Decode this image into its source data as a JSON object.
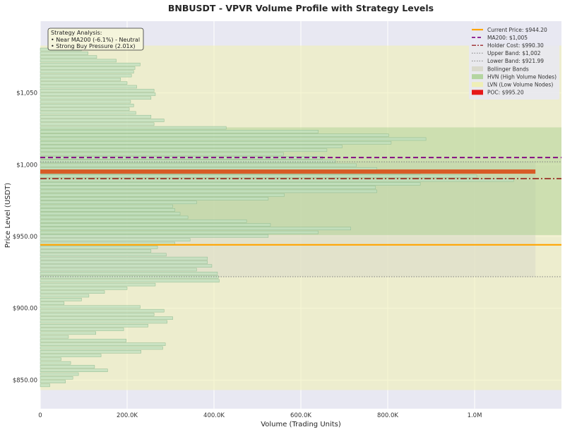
{
  "chart_data": {
    "type": "bar",
    "orientation": "horizontal",
    "title": "BNBUSDT - VPVR Volume Profile with Strategy Levels",
    "xlabel": "Volume (Trading Units)",
    "ylabel": "Price Level (USDT)",
    "xlim": [
      0,
      1200000
    ],
    "ylim": [
      830,
      1100
    ],
    "x_ticks": [
      {
        "value": 0,
        "label": "0"
      },
      {
        "value": 200000,
        "label": "200.0K"
      },
      {
        "value": 400000,
        "label": "400.0K"
      },
      {
        "value": 600000,
        "label": "600.0K"
      },
      {
        "value": 800000,
        "label": "800.0K"
      },
      {
        "value": 1000000,
        "label": "1.0M"
      }
    ],
    "y_ticks": [
      {
        "value": 850,
        "label": "$850.00"
      },
      {
        "value": 900,
        "label": "$900.00"
      },
      {
        "value": 950,
        "label": "$950.00"
      },
      {
        "value": 1000,
        "label": "$1,000"
      },
      {
        "value": 1050,
        "label": "$1,050"
      }
    ],
    "grid": true,
    "legend_position": "top-right",
    "colors": {
      "plot_bg": "#e8e8f2",
      "bar_fill": "#bfdfbf",
      "bar_edge": "#8fba8f",
      "current_price": "#ffa500",
      "ma200": "#800080",
      "holder_cost": "#8b0000",
      "bands": "#808080",
      "bollinger_fill": "#d8d8c8",
      "hvn_fill": "#a6cf8c",
      "lvn_fill": "#f0f0b0",
      "poc": "#e61919"
    },
    "volume_profile": {
      "bin_size": 2.6,
      "bins": [
        {
          "price": 846.3,
          "volume": 22000
        },
        {
          "price": 848.9,
          "volume": 58000
        },
        {
          "price": 851.5,
          "volume": 75000
        },
        {
          "price": 854.1,
          "volume": 88000
        },
        {
          "price": 856.7,
          "volume": 155000
        },
        {
          "price": 859.3,
          "volume": 125000
        },
        {
          "price": 861.9,
          "volume": 70000
        },
        {
          "price": 864.5,
          "volume": 48000
        },
        {
          "price": 867.1,
          "volume": 140000
        },
        {
          "price": 869.7,
          "volume": 232000
        },
        {
          "price": 872.3,
          "volume": 282000
        },
        {
          "price": 874.9,
          "volume": 288000
        },
        {
          "price": 877.5,
          "volume": 198000
        },
        {
          "price": 880.1,
          "volume": 65000
        },
        {
          "price": 882.7,
          "volume": 128000
        },
        {
          "price": 885.3,
          "volume": 192000
        },
        {
          "price": 887.9,
          "volume": 248000
        },
        {
          "price": 890.5,
          "volume": 292000
        },
        {
          "price": 893.1,
          "volume": 305000
        },
        {
          "price": 895.7,
          "volume": 262000
        },
        {
          "price": 898.3,
          "volume": 285000
        },
        {
          "price": 900.9,
          "volume": 230000
        },
        {
          "price": 903.5,
          "volume": 55000
        },
        {
          "price": 906.1,
          "volume": 95000
        },
        {
          "price": 908.7,
          "volume": 112000
        },
        {
          "price": 911.3,
          "volume": 148000
        },
        {
          "price": 913.9,
          "volume": 200000
        },
        {
          "price": 916.5,
          "volume": 265000
        },
        {
          "price": 919.1,
          "volume": 412000
        },
        {
          "price": 921.7,
          "volume": 410000
        },
        {
          "price": 924.3,
          "volume": 408000
        },
        {
          "price": 926.9,
          "volume": 360000
        },
        {
          "price": 929.5,
          "volume": 395000
        },
        {
          "price": 932.1,
          "volume": 385000
        },
        {
          "price": 934.7,
          "volume": 385000
        },
        {
          "price": 937.3,
          "volume": 290000
        },
        {
          "price": 939.9,
          "volume": 255000
        },
        {
          "price": 942.5,
          "volume": 270000
        },
        {
          "price": 945.1,
          "volume": 310000
        },
        {
          "price": 947.7,
          "volume": 345000
        },
        {
          "price": 950.3,
          "volume": 525000
        },
        {
          "price": 952.9,
          "volume": 640000
        },
        {
          "price": 955.5,
          "volume": 715000
        },
        {
          "price": 958.1,
          "volume": 530000
        },
        {
          "price": 960.7,
          "volume": 475000
        },
        {
          "price": 963.3,
          "volume": 340000
        },
        {
          "price": 965.9,
          "volume": 322000
        },
        {
          "price": 968.5,
          "volume": 310000
        },
        {
          "price": 971.1,
          "volume": 305000
        },
        {
          "price": 973.7,
          "volume": 360000
        },
        {
          "price": 976.3,
          "volume": 525000
        },
        {
          "price": 978.9,
          "volume": 562000
        },
        {
          "price": 981.5,
          "volume": 775000
        },
        {
          "price": 984.1,
          "volume": 772000
        },
        {
          "price": 986.7,
          "volume": 875000
        },
        {
          "price": 989.3,
          "volume": 1090000
        },
        {
          "price": 991.9,
          "volume": 1005000
        },
        {
          "price": 994.5,
          "volume": 875000
        },
        {
          "price": 997.1,
          "volume": 775000
        },
        {
          "price": 999.7,
          "volume": 728000
        },
        {
          "price": 1002.3,
          "volume": 680000
        },
        {
          "price": 1004.9,
          "volume": 650000
        },
        {
          "price": 1007.5,
          "volume": 560000
        },
        {
          "price": 1010.1,
          "volume": 660000
        },
        {
          "price": 1012.7,
          "volume": 695000
        },
        {
          "price": 1015.3,
          "volume": 808000
        },
        {
          "price": 1017.9,
          "volume": 888000
        },
        {
          "price": 1020.5,
          "volume": 802000
        },
        {
          "price": 1023.1,
          "volume": 640000
        },
        {
          "price": 1025.7,
          "volume": 428000
        },
        {
          "price": 1028.3,
          "volume": 262000
        },
        {
          "price": 1030.9,
          "volume": 285000
        },
        {
          "price": 1033.5,
          "volume": 255000
        },
        {
          "price": 1036.1,
          "volume": 220000
        },
        {
          "price": 1038.7,
          "volume": 205000
        },
        {
          "price": 1041.3,
          "volume": 215000
        },
        {
          "price": 1043.9,
          "volume": 208000
        },
        {
          "price": 1046.5,
          "volume": 255000
        },
        {
          "price": 1049.1,
          "volume": 265000
        },
        {
          "price": 1051.7,
          "volume": 262000
        },
        {
          "price": 1054.3,
          "volume": 222000
        },
        {
          "price": 1056.9,
          "volume": 200000
        },
        {
          "price": 1059.5,
          "volume": 185000
        },
        {
          "price": 1062.1,
          "volume": 210000
        },
        {
          "price": 1064.7,
          "volume": 215000
        },
        {
          "price": 1067.3,
          "volume": 218000
        },
        {
          "price": 1069.9,
          "volume": 230000
        },
        {
          "price": 1072.5,
          "volume": 175000
        },
        {
          "price": 1075.1,
          "volume": 130000
        },
        {
          "price": 1077.7,
          "volume": 110000
        },
        {
          "price": 1080.3,
          "volume": 95000
        }
      ]
    },
    "levels": {
      "current_price": 944.2,
      "ma200": 1005,
      "holder_cost": 990.3,
      "upper_band": 1002,
      "lower_band": 921.99,
      "poc": 995.2
    },
    "shaded_zones": {
      "lvn": {
        "from": 843,
        "to": 1083
      },
      "hvn": {
        "from": 951,
        "to": 1026
      },
      "bollinger": {
        "from": 921.99,
        "to": 1002,
        "x_to": 1140000
      }
    },
    "poc_bar": {
      "price": 995.2,
      "volume": 1140000
    },
    "legend": [
      {
        "key": "current",
        "label": "Current Price: $944.20"
      },
      {
        "key": "ma200",
        "label": "MA200: $1,005"
      },
      {
        "key": "holder",
        "label": "Holder Cost: $990.30"
      },
      {
        "key": "upper",
        "label": "Upper Band: $1,002"
      },
      {
        "key": "lower",
        "label": "Lower Band: $921.99"
      },
      {
        "key": "bollinger",
        "label": "Bollinger Bands"
      },
      {
        "key": "hvn",
        "label": "HVN (High Volume Nodes)"
      },
      {
        "key": "lvn",
        "label": "LVN (Low Volume Nodes)"
      },
      {
        "key": "poc",
        "label": "POC: $995.20"
      }
    ],
    "annotation": {
      "title": "Strategy Analysis:",
      "lines": [
        "• Near MA200 (-6.1%) - Neutral",
        "• Strong Buy Pressure (2.01x)"
      ]
    }
  }
}
